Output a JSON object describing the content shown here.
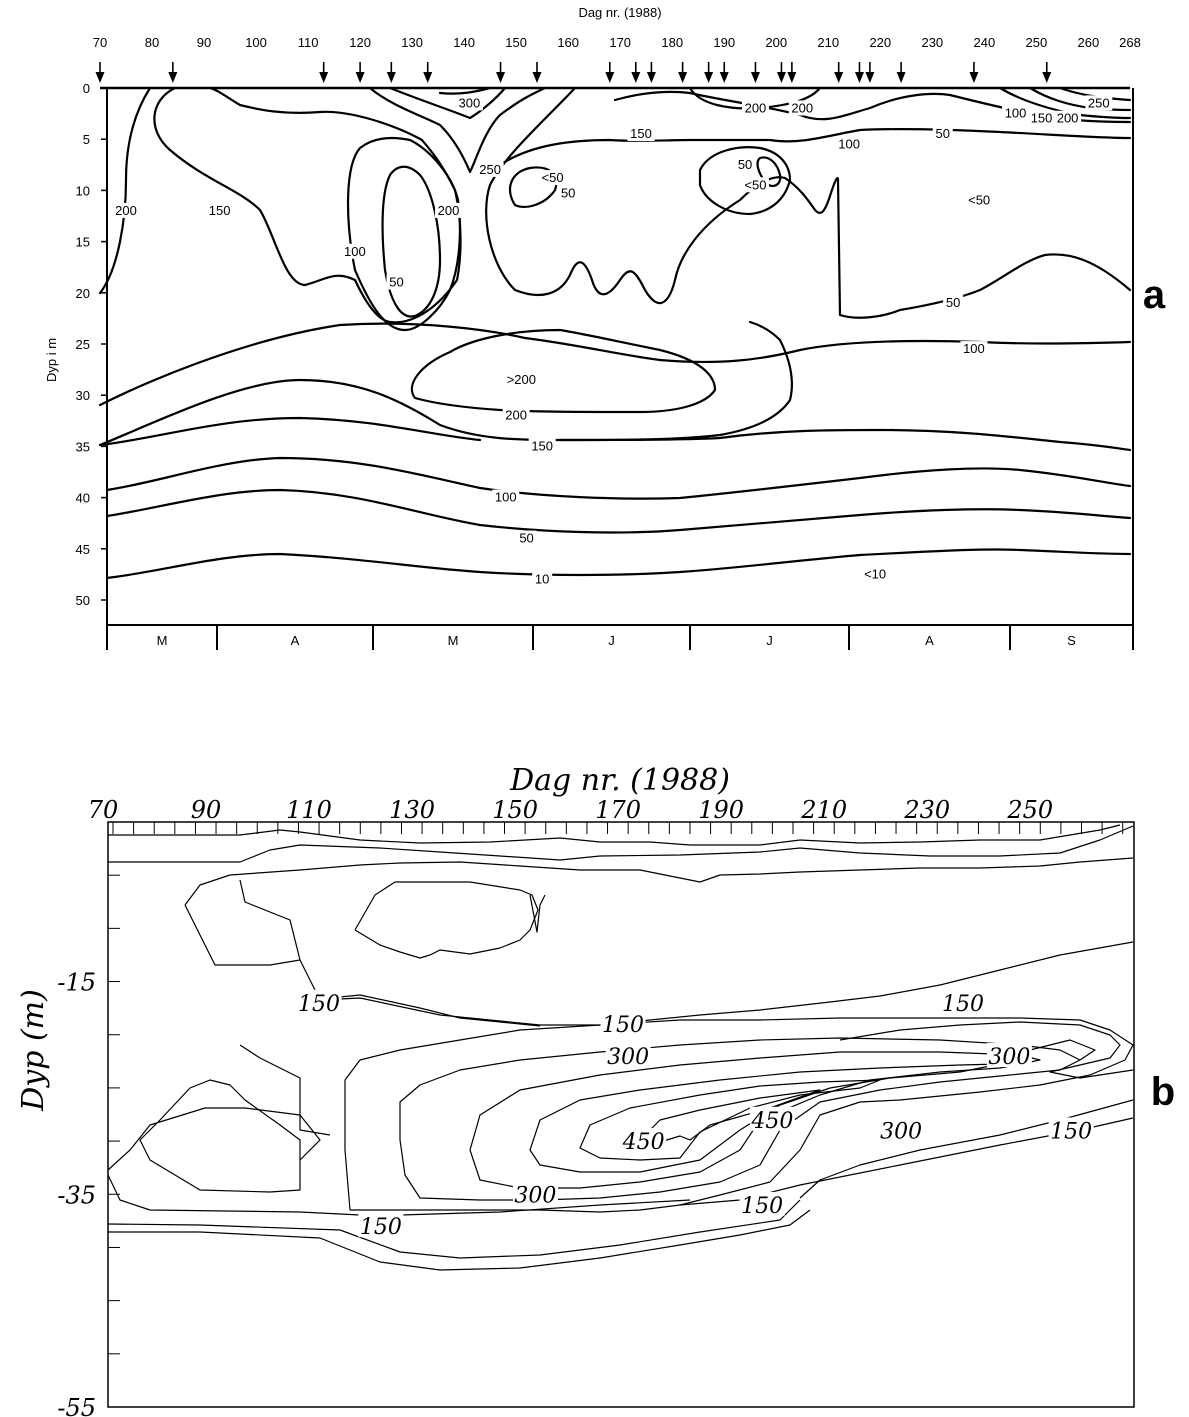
{
  "chart_data": [
    {
      "type": "contour",
      "panel_label": "a",
      "title": "Dag nr. (1988)",
      "xlabel": "Dag nr. (1988)",
      "ylabel": "Dyp i m",
      "x_ticks": [
        "70",
        "80",
        "90",
        "100",
        "110",
        "120",
        "130",
        "140",
        "150",
        "160",
        "170",
        "180",
        "190",
        "200",
        "210",
        "220",
        "230",
        "240",
        "250",
        "260",
        "268"
      ],
      "y_ticks": [
        "0",
        "5",
        "10",
        "15",
        "20",
        "25",
        "30",
        "35",
        "40",
        "45",
        "50"
      ],
      "xlim": [
        70,
        268
      ],
      "ylim": [
        0,
        52
      ],
      "y_inverted": true,
      "sampling_days": [
        70,
        84,
        113,
        120,
        126,
        133,
        147,
        154,
        168,
        173,
        176,
        182,
        187,
        190,
        196,
        201,
        203,
        212,
        216,
        218,
        224,
        238,
        252
      ],
      "months": [
        "M",
        "A",
        "M",
        "J",
        "J",
        "A",
        "S"
      ],
      "contour_labels": [
        {
          "text": "300",
          "x": 141,
          "y": 1.5
        },
        {
          "text": "250",
          "x": 145,
          "y": 8
        },
        {
          "text": "200",
          "x": 137,
          "y": 12
        },
        {
          "text": "150",
          "x": 93,
          "y": 12
        },
        {
          "text": "200",
          "x": 75,
          "y": 12
        },
        {
          "text": "100",
          "x": 119,
          "y": 16
        },
        {
          "text": "50",
          "x": 127,
          "y": 19
        },
        {
          "text": "<50",
          "x": 157,
          "y": 8.8
        },
        {
          "text": "50",
          "x": 160,
          "y": 10.3
        },
        {
          "text": "150",
          "x": 174,
          "y": 4.5
        },
        {
          "text": "200",
          "x": 196,
          "y": 2
        },
        {
          "text": "200",
          "x": 205,
          "y": 2
        },
        {
          "text": "50",
          "x": 194,
          "y": 7.5
        },
        {
          "text": "<50",
          "x": 196,
          "y": 9.5
        },
        {
          "text": "100",
          "x": 214,
          "y": 5.5
        },
        {
          "text": "50",
          "x": 232,
          "y": 4.5
        },
        {
          "text": "<50",
          "x": 239,
          "y": 11
        },
        {
          "text": "100",
          "x": 246,
          "y": 2.5
        },
        {
          "text": "150",
          "x": 251,
          "y": 3
        },
        {
          "text": "200",
          "x": 256,
          "y": 3
        },
        {
          "text": "250",
          "x": 262,
          "y": 1.5
        },
        {
          "text": "50",
          "x": 234,
          "y": 21
        },
        {
          "text": "100",
          "x": 238,
          "y": 25.5
        },
        {
          "text": ">200",
          "x": 151,
          "y": 28.5
        },
        {
          "text": "200",
          "x": 150,
          "y": 32
        },
        {
          "text": "150",
          "x": 155,
          "y": 35
        },
        {
          "text": "100",
          "x": 148,
          "y": 40
        },
        {
          "text": "50",
          "x": 152,
          "y": 44
        },
        {
          "text": "10",
          "x": 155,
          "y": 48
        },
        {
          "text": "<10",
          "x": 219,
          "y": 47.5
        }
      ]
    },
    {
      "type": "contour",
      "panel_label": "b",
      "title": "Dag nr. (1988)",
      "xlabel": "Dag nr. (1988)",
      "ylabel": "Dyp (m)",
      "x_ticks": [
        "70",
        "90",
        "110",
        "130",
        "150",
        "170",
        "190",
        "210",
        "230",
        "250"
      ],
      "y_ticks": [
        "-15",
        "-35",
        "-55"
      ],
      "xlim": [
        70,
        268
      ],
      "ylim": [
        -55,
        0
      ],
      "contour_labels": [
        {
          "text": "150",
          "x": 110,
          "y": -17
        },
        {
          "text": "150",
          "x": 169,
          "y": -19
        },
        {
          "text": "150",
          "x": 235,
          "y": -17
        },
        {
          "text": "300",
          "x": 170,
          "y": -22
        },
        {
          "text": "300",
          "x": 244,
          "y": -22
        },
        {
          "text": "450",
          "x": 173,
          "y": -30
        },
        {
          "text": "450",
          "x": 198,
          "y": -28
        },
        {
          "text": "300",
          "x": 223,
          "y": -29
        },
        {
          "text": "150",
          "x": 256,
          "y": -29
        },
        {
          "text": "300",
          "x": 152,
          "y": -35
        },
        {
          "text": "150",
          "x": 196,
          "y": -36
        },
        {
          "text": "150",
          "x": 122,
          "y": -38
        }
      ]
    }
  ]
}
